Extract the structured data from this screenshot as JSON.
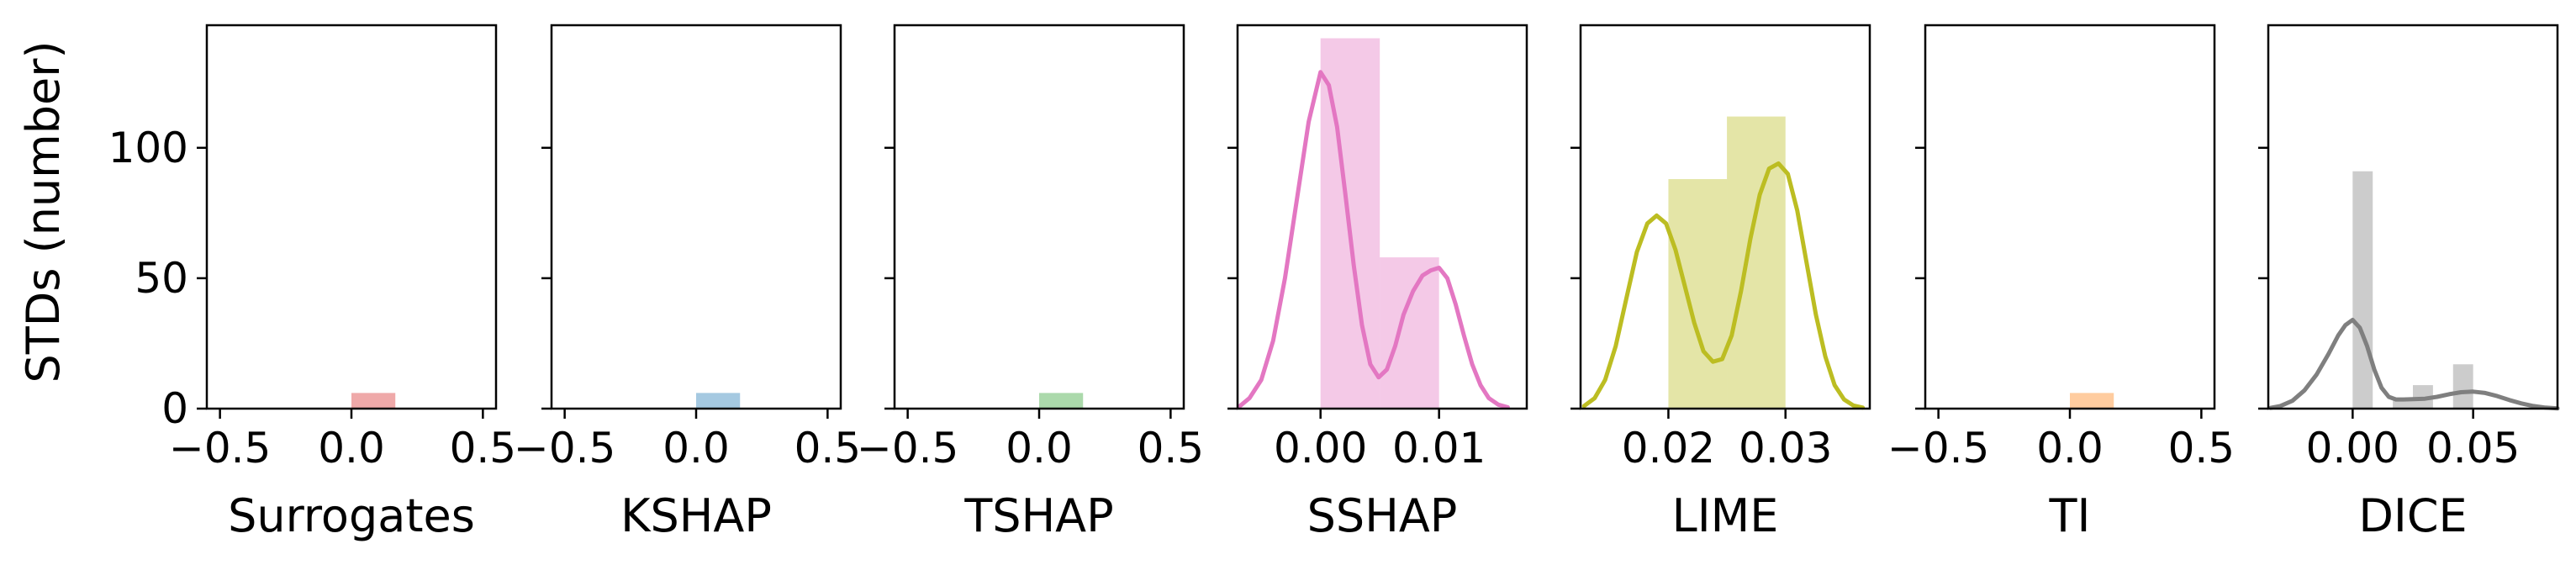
{
  "chart_data": {
    "type": "histogram-kde-grid",
    "ylabel": "STDs (number)",
    "ylim": [
      0,
      147
    ],
    "yticks": [
      0,
      50,
      100
    ],
    "shared_y": true,
    "grid": false,
    "panels": [
      {
        "xlabel": "Surrogates",
        "color": "#d62728",
        "xlim": [
          -0.55,
          0.55
        ],
        "xticks": [
          -0.5,
          0.0,
          0.5
        ],
        "xtick_labels": [
          "−0.5",
          "0.0",
          "0.5"
        ],
        "bars": [
          {
            "x0": 0.0,
            "x1": 0.167,
            "y": 6
          }
        ],
        "kde": []
      },
      {
        "xlabel": "KSHAP",
        "color": "#1f77b4",
        "xlim": [
          -0.55,
          0.55
        ],
        "xticks": [
          -0.5,
          0.0,
          0.5
        ],
        "xtick_labels": [
          "−0.5",
          "0.0",
          "0.5"
        ],
        "bars": [
          {
            "x0": 0.0,
            "x1": 0.167,
            "y": 6
          }
        ],
        "kde": []
      },
      {
        "xlabel": "TSHAP",
        "color": "#2ca02c",
        "xlim": [
          -0.55,
          0.55
        ],
        "xticks": [
          -0.5,
          0.0,
          0.5
        ],
        "xtick_labels": [
          "−0.5",
          "0.0",
          "0.5"
        ],
        "bars": [
          {
            "x0": 0.0,
            "x1": 0.167,
            "y": 6
          }
        ],
        "kde": []
      },
      {
        "xlabel": "SSHAP",
        "color": "#e377c2",
        "xlim": [
          -0.007,
          0.0174
        ],
        "xticks": [
          0.0,
          0.01
        ],
        "xtick_labels": [
          "0.00",
          "0.01"
        ],
        "bars": [
          {
            "x0": 0.0,
            "x1": 0.005,
            "y": 142
          },
          {
            "x0": 0.005,
            "x1": 0.01,
            "y": 58
          }
        ],
        "kde": [
          [
            -0.0068,
            1
          ],
          [
            -0.006,
            4
          ],
          [
            -0.005,
            11
          ],
          [
            -0.004,
            26
          ],
          [
            -0.003,
            50
          ],
          [
            -0.002,
            80
          ],
          [
            -0.001,
            110
          ],
          [
            0.0,
            129
          ],
          [
            0.0007,
            124
          ],
          [
            0.0014,
            108
          ],
          [
            0.0021,
            82
          ],
          [
            0.0028,
            55
          ],
          [
            0.0035,
            32
          ],
          [
            0.0042,
            17
          ],
          [
            0.0049,
            12
          ],
          [
            0.0056,
            15
          ],
          [
            0.0063,
            24
          ],
          [
            0.007,
            36
          ],
          [
            0.0078,
            45
          ],
          [
            0.0086,
            51
          ],
          [
            0.0093,
            53
          ],
          [
            0.01,
            54
          ],
          [
            0.0107,
            50
          ],
          [
            0.0114,
            40
          ],
          [
            0.0121,
            28
          ],
          [
            0.0128,
            17
          ],
          [
            0.0135,
            9
          ],
          [
            0.0142,
            4
          ],
          [
            0.015,
            1.5
          ],
          [
            0.0158,
            0.5
          ]
        ]
      },
      {
        "xlabel": "LIME",
        "color": "#bcbd22",
        "xlim": [
          0.0125,
          0.0372
        ],
        "xticks": [
          0.02,
          0.03
        ],
        "xtick_labels": [
          "0.02",
          "0.03"
        ],
        "bars": [
          {
            "x0": 0.02,
            "x1": 0.025,
            "y": 88
          },
          {
            "x0": 0.025,
            "x1": 0.03,
            "y": 112
          }
        ],
        "kde": [
          [
            0.0128,
            1
          ],
          [
            0.0137,
            4
          ],
          [
            0.0146,
            11
          ],
          [
            0.0155,
            24
          ],
          [
            0.0164,
            42
          ],
          [
            0.0173,
            60
          ],
          [
            0.0182,
            71
          ],
          [
            0.019,
            74
          ],
          [
            0.0198,
            71
          ],
          [
            0.0206,
            61
          ],
          [
            0.0214,
            47
          ],
          [
            0.0222,
            33
          ],
          [
            0.023,
            22
          ],
          [
            0.0238,
            18
          ],
          [
            0.0246,
            19
          ],
          [
            0.0254,
            28
          ],
          [
            0.0262,
            45
          ],
          [
            0.027,
            65
          ],
          [
            0.0278,
            82
          ],
          [
            0.0286,
            92
          ],
          [
            0.0294,
            94
          ],
          [
            0.0302,
            90
          ],
          [
            0.031,
            76
          ],
          [
            0.0318,
            56
          ],
          [
            0.0326,
            36
          ],
          [
            0.0334,
            20
          ],
          [
            0.0342,
            9
          ],
          [
            0.035,
            3.5
          ],
          [
            0.0358,
            1.2
          ],
          [
            0.0366,
            0.4
          ]
        ]
      },
      {
        "xlabel": "TI",
        "color": "#ff7f0e",
        "xlim": [
          -0.55,
          0.55
        ],
        "xticks": [
          -0.5,
          0.0,
          0.5
        ],
        "xtick_labels": [
          "−0.5",
          "0.0",
          "0.5"
        ],
        "bars": [
          {
            "x0": 0.0,
            "x1": 0.167,
            "y": 6
          }
        ],
        "kde": []
      },
      {
        "xlabel": "DICE",
        "color": "#7f7f7f",
        "xlim": [
          -0.035,
          0.085
        ],
        "xticks": [
          0.0,
          0.05
        ],
        "xtick_labels": [
          "0.00",
          "0.05"
        ],
        "bars": [
          {
            "x0": 0.0,
            "x1": 0.00833,
            "y": 91
          },
          {
            "x0": 0.01667,
            "x1": 0.025,
            "y": 3
          },
          {
            "x0": 0.025,
            "x1": 0.03333,
            "y": 9
          },
          {
            "x0": 0.04167,
            "x1": 0.05,
            "y": 17
          }
        ],
        "kde": [
          [
            -0.034,
            0.3
          ],
          [
            -0.03,
            1
          ],
          [
            -0.025,
            3
          ],
          [
            -0.02,
            7
          ],
          [
            -0.015,
            13
          ],
          [
            -0.01,
            21
          ],
          [
            -0.006,
            28
          ],
          [
            -0.003,
            32
          ],
          [
            0.0,
            34
          ],
          [
            0.003,
            31
          ],
          [
            0.006,
            24
          ],
          [
            0.009,
            15
          ],
          [
            0.012,
            8
          ],
          [
            0.015,
            4.5
          ],
          [
            0.018,
            3.5
          ],
          [
            0.021,
            3.5
          ],
          [
            0.025,
            3.6
          ],
          [
            0.03,
            3.8
          ],
          [
            0.035,
            4.5
          ],
          [
            0.04,
            5.5
          ],
          [
            0.045,
            6.3
          ],
          [
            0.05,
            6.5
          ],
          [
            0.055,
            6
          ],
          [
            0.06,
            4.8
          ],
          [
            0.065,
            3.3
          ],
          [
            0.07,
            2
          ],
          [
            0.075,
            1
          ],
          [
            0.08,
            0.4
          ],
          [
            0.085,
            0.1
          ]
        ]
      }
    ]
  }
}
